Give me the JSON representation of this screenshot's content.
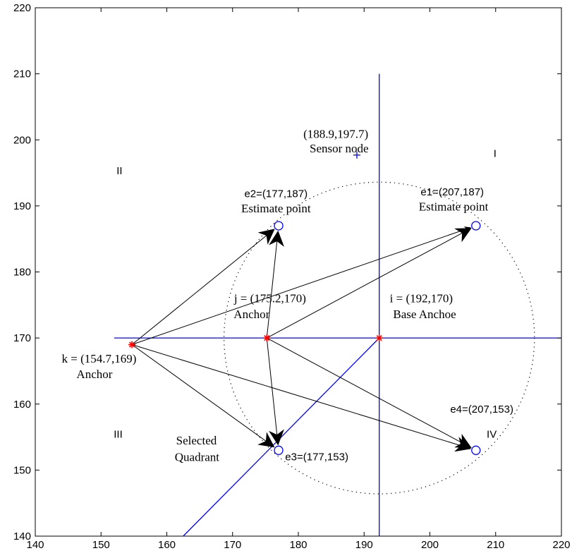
{
  "chart_data": {
    "type": "scatter",
    "title": "",
    "xlabel": "",
    "ylabel": "",
    "xlim": [
      140,
      220
    ],
    "ylim": [
      140,
      220
    ],
    "xticks": [
      140,
      150,
      160,
      170,
      180,
      190,
      200,
      210,
      220
    ],
    "yticks": [
      140,
      150,
      160,
      170,
      180,
      190,
      200,
      210,
      220
    ],
    "grid": false,
    "colors": {
      "axes": "#0000ff",
      "anchor": "#ff0000",
      "estimate": "#0000ff",
      "arrow": "#000000",
      "circle": "#000000"
    },
    "sensor_node": {
      "x": 188.9,
      "y": 197.7,
      "marker": "plus"
    },
    "anchors": [
      {
        "id": "i",
        "x": 192.3,
        "y": 170,
        "marker": "star"
      },
      {
        "id": "j",
        "x": 175.2,
        "y": 170,
        "marker": "star"
      },
      {
        "id": "k",
        "x": 154.7,
        "y": 169,
        "marker": "star"
      }
    ],
    "estimate_points": [
      {
        "id": "e1",
        "x": 207,
        "y": 187,
        "marker": "circle"
      },
      {
        "id": "e2",
        "x": 177,
        "y": 187,
        "marker": "circle"
      },
      {
        "id": "e3",
        "x": 177,
        "y": 153,
        "marker": "circle"
      },
      {
        "id": "e4",
        "x": 207,
        "y": 153,
        "marker": "circle"
      }
    ],
    "quadrant_lines": [
      {
        "name": "horizontal",
        "points": [
          [
            152,
            170
          ],
          [
            220,
            170
          ]
        ]
      },
      {
        "name": "vertical",
        "points": [
          [
            192.3,
            140
          ],
          [
            192.3,
            210
          ]
        ]
      },
      {
        "name": "diagonal",
        "points": [
          [
            162.5,
            140
          ],
          [
            192.3,
            170
          ]
        ]
      }
    ],
    "dotted_circle": {
      "cx": 192.3,
      "cy": 170,
      "r": 23.6
    },
    "arrows": [
      {
        "from": "k",
        "to": "e2"
      },
      {
        "from": "k",
        "to": "e3"
      },
      {
        "from": "k",
        "to": "e4"
      },
      {
        "from": "j",
        "to": "e1"
      },
      {
        "from": "j",
        "to": "e2"
      },
      {
        "from": "j",
        "to": "e3"
      },
      {
        "from": "j",
        "to": "e4"
      },
      {
        "from": "k",
        "to": "e1"
      }
    ],
    "annotations": [
      {
        "id": "sensor-coord",
        "text": "(188.9,197.7)",
        "x": 185.7,
        "y": 200.3,
        "font": "serif"
      },
      {
        "id": "sensor-label",
        "text": "Sensor node",
        "x": 186.2,
        "y": 198.1,
        "font": "serif"
      },
      {
        "id": "quad-I",
        "text": "I",
        "x": 209.9,
        "y": 197.4,
        "font": "sans"
      },
      {
        "id": "quad-II",
        "text": "II",
        "x": 152.8,
        "y": 194.8,
        "font": "sans"
      },
      {
        "id": "quad-III",
        "text": "III",
        "x": 152.6,
        "y": 154.9,
        "font": "sans"
      },
      {
        "id": "quad-IV",
        "text": "IV",
        "x": 209.4,
        "y": 154.9,
        "font": "sans"
      },
      {
        "id": "e2-coord",
        "text": "e2=(177,187)",
        "x": 176.6,
        "y": 191.3,
        "font": "sans"
      },
      {
        "id": "e2-label",
        "text": "Estimate point",
        "x": 176.6,
        "y": 189.0,
        "font": "serif"
      },
      {
        "id": "e1-coord",
        "text": "e1=(207,187)",
        "x": 203.4,
        "y": 191.6,
        "font": "sans"
      },
      {
        "id": "e1-label",
        "text": "Estimate point",
        "x": 203.6,
        "y": 189.3,
        "font": "serif"
      },
      {
        "id": "j-coord",
        "text": "j = (175.2,170)",
        "x": 175.7,
        "y": 175.4,
        "font": "serif"
      },
      {
        "id": "j-label",
        "text": "Anchor",
        "x": 172.9,
        "y": 173.0,
        "font": "serif"
      },
      {
        "id": "i-coord",
        "text": "i = (192,170)",
        "x": 198.7,
        "y": 175.4,
        "font": "serif"
      },
      {
        "id": "i-label",
        "text": "Base Anchoe",
        "x": 199.2,
        "y": 173.0,
        "font": "serif"
      },
      {
        "id": "k-coord",
        "text": "k = (154.7,169)",
        "x": 149.7,
        "y": 166.3,
        "font": "serif"
      },
      {
        "id": "k-label",
        "text": "Anchor",
        "x": 149.0,
        "y": 163.9,
        "font": "serif"
      },
      {
        "id": "e4-coord",
        "text": "e4=(207,153)",
        "x": 207.9,
        "y": 158.7,
        "font": "sans"
      },
      {
        "id": "e3-coord",
        "text": "e3=(177,153)",
        "x": 182.8,
        "y": 151.5,
        "font": "sans"
      },
      {
        "id": "selected-1",
        "text": "Selected",
        "x": 164.5,
        "y": 153.9,
        "font": "serif"
      },
      {
        "id": "selected-2",
        "text": "Quadrant",
        "x": 164.6,
        "y": 151.4,
        "font": "serif"
      }
    ]
  }
}
